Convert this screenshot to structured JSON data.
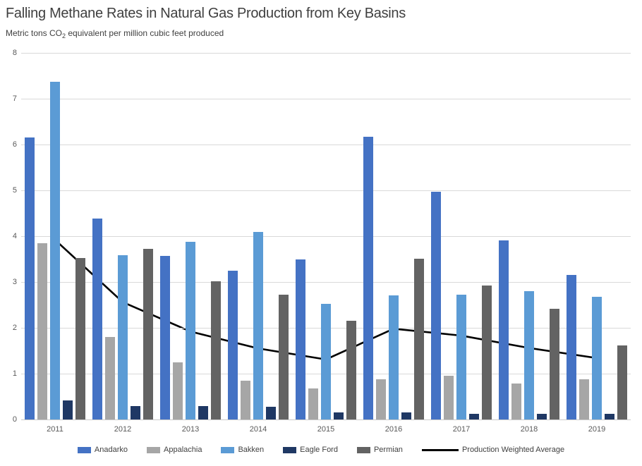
{
  "header": {
    "title": "Falling Methane Rates in Natural Gas Production from Key Basins",
    "subtitle_prefix": "Metric tons CO",
    "subtitle_subscript": "2",
    "subtitle_suffix": " equivalent per million cubic feet produced"
  },
  "chart_data": {
    "type": "bar",
    "title": "Falling Methane Rates in Natural Gas Production from Key Basins",
    "subtitle": "Metric tons CO2 equivalent per million cubic feet produced",
    "categories": [
      "2011",
      "2012",
      "2013",
      "2014",
      "2015",
      "2016",
      "2017",
      "2018",
      "2019"
    ],
    "series": [
      {
        "name": "Anadarko",
        "type": "bar",
        "color": "#4472C4",
        "values": [
          6.15,
          4.39,
          3.57,
          3.25,
          3.49,
          6.17,
          4.97,
          3.91,
          3.16
        ]
      },
      {
        "name": "Appalachia",
        "type": "bar",
        "color": "#A6A6A6",
        "values": [
          3.85,
          1.8,
          1.25,
          0.85,
          0.68,
          0.88,
          0.96,
          0.79,
          0.88
        ]
      },
      {
        "name": "Bakken",
        "type": "bar",
        "color": "#5B9BD5",
        "values": [
          7.37,
          3.58,
          3.88,
          4.09,
          2.52,
          2.71,
          2.73,
          2.8,
          2.67
        ]
      },
      {
        "name": "Eagle Ford",
        "type": "bar",
        "color": "#1F3864",
        "values": [
          0.41,
          0.3,
          0.3,
          0.27,
          0.16,
          0.16,
          0.13,
          0.12,
          0.12
        ]
      },
      {
        "name": "Permian",
        "type": "bar",
        "color": "#636363",
        "values": [
          3.52,
          3.72,
          3.02,
          2.73,
          2.16,
          3.51,
          2.93,
          2.42,
          1.62
        ]
      },
      {
        "name": "Production Weighted Average",
        "type": "line",
        "color": "#000000",
        "values": [
          3.92,
          2.56,
          1.92,
          1.55,
          1.31,
          1.98,
          1.83,
          1.56,
          1.34
        ]
      }
    ],
    "xlabel": "",
    "ylabel": "",
    "ylim": [
      0,
      8
    ],
    "yticks": [
      0,
      1,
      2,
      3,
      4,
      5,
      6,
      7,
      8
    ],
    "grid": true,
    "legend_position": "bottom"
  },
  "colors": {
    "gridline": "#D9D9D9",
    "axis_baseline": "#C9C9C9",
    "axis_text": "#595959",
    "title_text": "#3F3F3F",
    "legend_text": "#404040",
    "background": "#FFFFFF"
  }
}
